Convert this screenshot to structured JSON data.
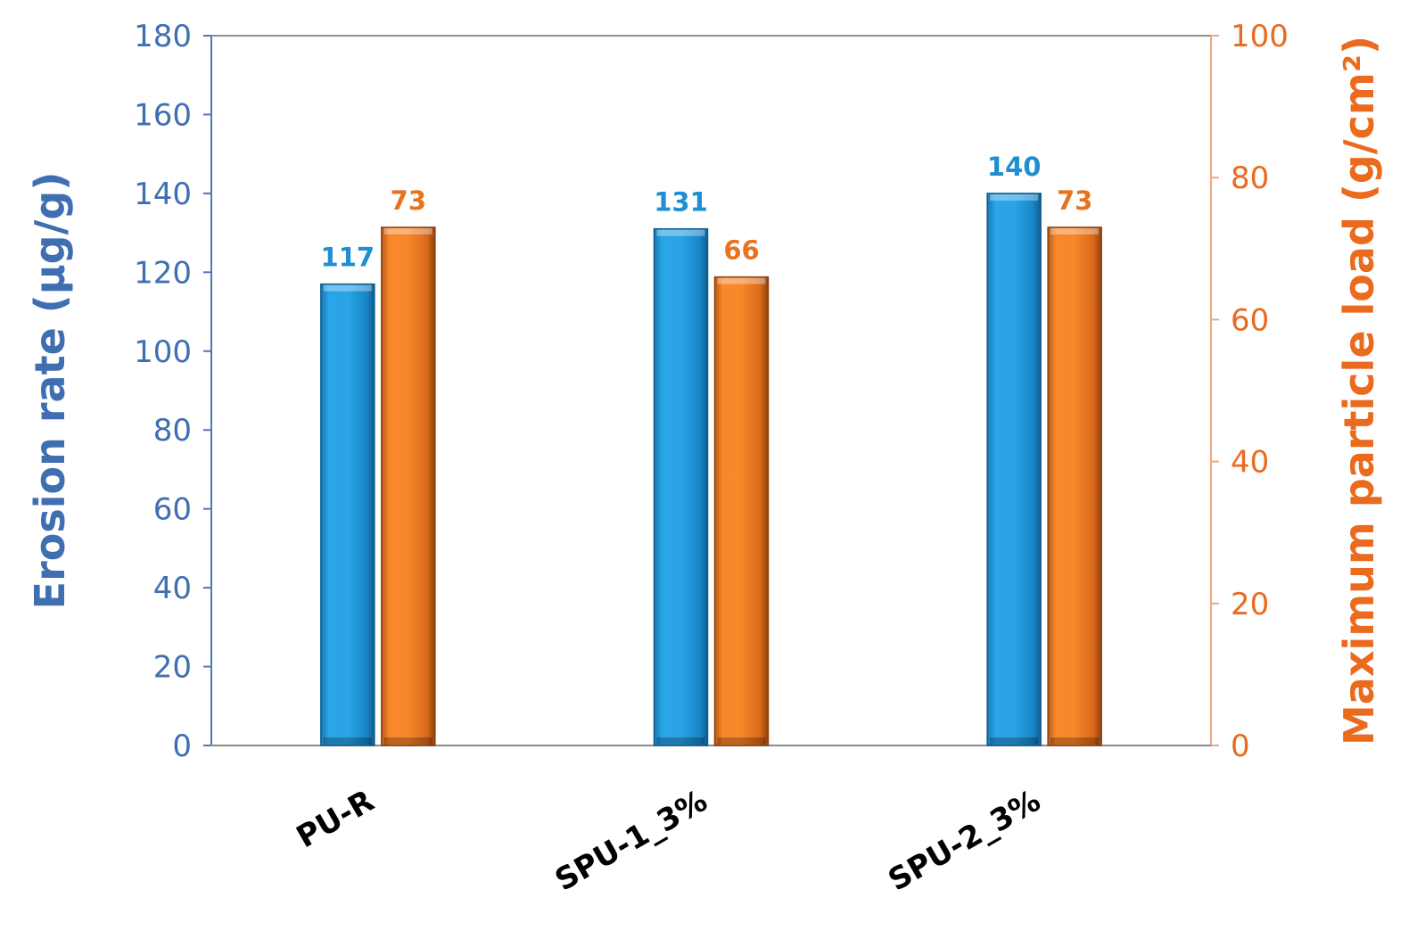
{
  "chart_data": {
    "type": "bar",
    "categories": [
      "PU-R",
      "SPU-1_3%",
      "SPU-2_3%"
    ],
    "series": [
      {
        "axis": "left",
        "color": "#1f9be0",
        "label_color": "#1e8fd2",
        "values": [
          117,
          131,
          140
        ]
      },
      {
        "axis": "right",
        "color": "#f07c22",
        "label_color": "#e8731c",
        "values": [
          73,
          66,
          73
        ]
      }
    ],
    "y_left": {
      "label": "Erosion rate (μg/g)",
      "color": "#3f6fb0",
      "range": [
        0,
        180
      ],
      "ticks": [
        "0",
        "20",
        "40",
        "60",
        "80",
        "100",
        "120",
        "140",
        "160",
        "180"
      ]
    },
    "y_right": {
      "label": "Maximum particle load (g/cm²)",
      "color": "#ea6a1e",
      "range": [
        0,
        100
      ],
      "ticks": [
        "0",
        "20",
        "40",
        "60",
        "80",
        "100"
      ]
    },
    "grid": false,
    "legend": "none"
  }
}
